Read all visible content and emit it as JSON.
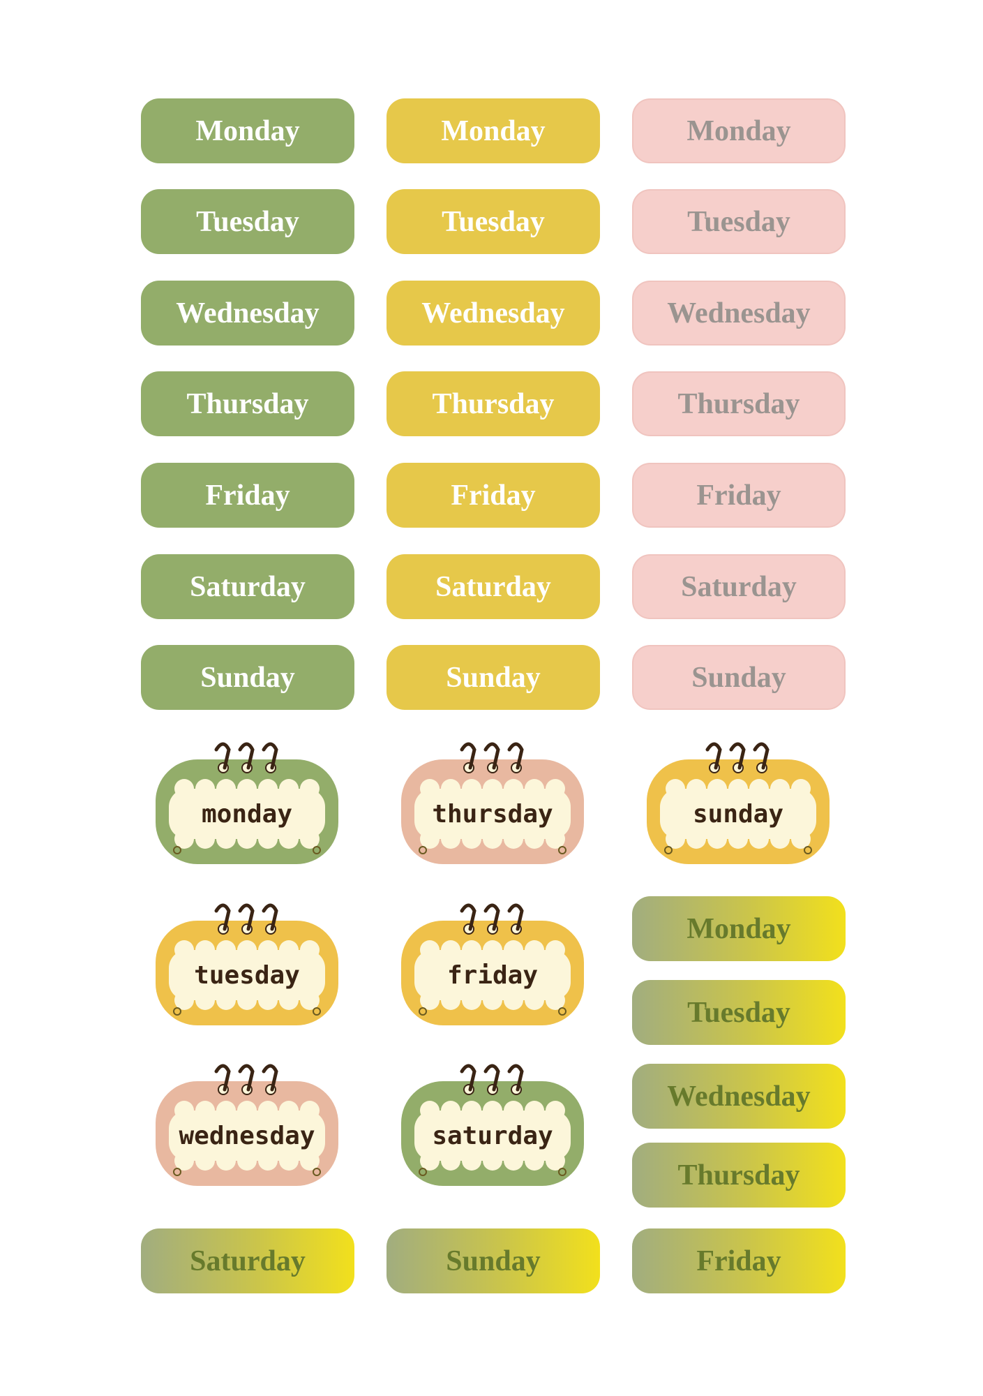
{
  "plain_stickers": {
    "green": [
      "Monday",
      "Tuesday",
      "Wednesday",
      "Thursday",
      "Friday",
      "Saturday",
      "Sunday"
    ],
    "yellow": [
      "Monday",
      "Tuesday",
      "Wednesday",
      "Thursday",
      "Friday",
      "Saturday",
      "Sunday"
    ],
    "pink": [
      "Monday",
      "Tuesday",
      "Wednesday",
      "Thursday",
      "Friday",
      "Saturday",
      "Sunday"
    ]
  },
  "calendar_stickers": [
    "monday",
    "thursday",
    "sunday",
    "tuesday",
    "friday",
    "wednesday",
    "saturday"
  ],
  "gradient_stickers": [
    "Monday",
    "Tuesday",
    "Wednesday",
    "Thursday",
    "Saturday",
    "Sunday",
    "Friday"
  ]
}
